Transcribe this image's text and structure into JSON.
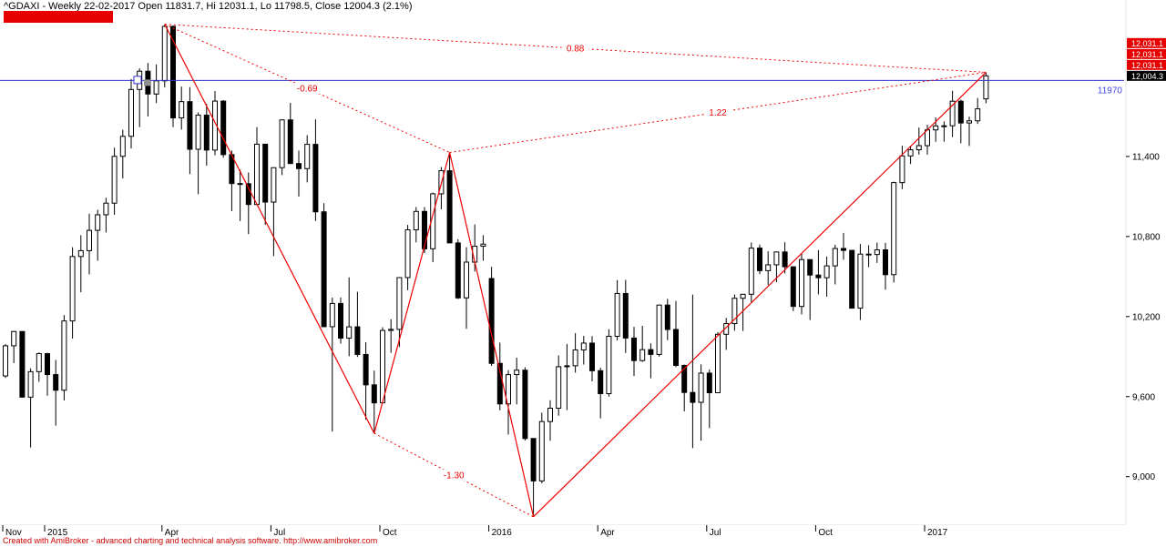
{
  "window": {
    "title": "^GDAXI - Weekly 22-02-2017 Open 11831.7, Hi 12031.1, Lo 11798.5, Close 12004.3 (2.1%)",
    "footer": "Created with AmiBroker - advanced charting and technical analysis software. http://www.amibroker.com"
  },
  "colors": {
    "pattern_red": "#ee0000",
    "hline_blue": "#3333cc",
    "banner_red": "#e60000",
    "up_candle": "#ffffff",
    "down_candle": "#000000"
  },
  "chart_data": {
    "type": "candlestick",
    "symbol": "^GDAXI",
    "timeframe": "Weekly",
    "as_of": "22-02-2017",
    "last_bar": {
      "open": 11831.7,
      "high": 12031.1,
      "low": 11798.5,
      "close": 12004.3,
      "change_pct": "2.1%"
    },
    "ylim": [
      8650,
      12450
    ],
    "y_ticks": [
      {
        "label": "11,400",
        "price": 11400
      },
      {
        "label": "10,800",
        "price": 10800
      },
      {
        "label": "10,200",
        "price": 10200
      },
      {
        "label": "9,600",
        "price": 9600
      },
      {
        "label": "9,000",
        "price": 9000
      }
    ],
    "x_ticks": [
      {
        "label": "Nov",
        "index": 0
      },
      {
        "label": "2015",
        "index": 5
      },
      {
        "label": "Apr",
        "index": 19
      },
      {
        "label": "Jul",
        "index": 32
      },
      {
        "label": "Oct",
        "index": 45
      },
      {
        "label": "2016",
        "index": 58
      },
      {
        "label": "Apr",
        "index": 71
      },
      {
        "label": "Jul",
        "index": 84
      },
      {
        "label": "Oct",
        "index": 97
      },
      {
        "label": "2017",
        "index": 110
      }
    ],
    "horizontal_line": {
      "price": 11970,
      "label": "11970",
      "color": "#3333cc",
      "label_color": "#4444ee"
    },
    "pattern": {
      "color": "#ee0000",
      "points": {
        "X": {
          "index": 19,
          "price": 12391
        },
        "A": {
          "index": 44,
          "price": 9325
        },
        "B": {
          "index": 53,
          "price": 11430
        },
        "C": {
          "index": 63,
          "price": 8699
        },
        "D": {
          "index": 117,
          "price": 12031.1
        }
      },
      "solid_lines": [
        [
          "X",
          "A"
        ],
        [
          "A",
          "B"
        ],
        [
          "B",
          "C"
        ],
        [
          "C",
          "D"
        ]
      ],
      "dotted_lines": [
        {
          "from": "X",
          "to": "B",
          "label": "-0.69"
        },
        {
          "from": "A",
          "to": "C",
          "label": "-1.30"
        },
        {
          "from": "X",
          "to": "D",
          "label": "0.88"
        },
        {
          "from": "B",
          "to": "D",
          "label": "1.22"
        }
      ]
    },
    "axis_price_boxes": [
      {
        "text": "12,031.1",
        "bg": "#e60000",
        "fg": "#ffffff"
      },
      {
        "text": "12,031.1",
        "bg": "#e60000",
        "fg": "#ffffff"
      },
      {
        "text": "12,031.1",
        "bg": "#e60000",
        "fg": "#ffffff"
      },
      {
        "text": "12,004.3",
        "bg": "#000000",
        "fg": "#ffffff"
      }
    ],
    "ohlc": [
      [
        9755,
        9993,
        9740,
        9981
      ],
      [
        9981,
        10093,
        9851,
        10088
      ],
      [
        10088,
        10089,
        9594,
        9596
      ],
      [
        9596,
        9812,
        9219,
        9787
      ],
      [
        9787,
        9931,
        9711,
        9922
      ],
      [
        9922,
        9928,
        9607,
        9765
      ],
      [
        9765,
        9875,
        9382,
        9648
      ],
      [
        9648,
        10211,
        9571,
        10167
      ],
      [
        10167,
        10720,
        10035,
        10650
      ],
      [
        10650,
        10810,
        10382,
        10694
      ],
      [
        10694,
        10970,
        10516,
        10846
      ],
      [
        10846,
        11000,
        10618,
        10963
      ],
      [
        10963,
        11090,
        10830,
        11050
      ],
      [
        11050,
        11466,
        10963,
        11401
      ],
      [
        11401,
        11600,
        11235,
        11551
      ],
      [
        11551,
        11980,
        11460,
        11902
      ],
      [
        11902,
        12060,
        11620,
        12039
      ],
      [
        12039,
        12101,
        11700,
        11868
      ],
      [
        11868,
        12090,
        11800,
        11967
      ],
      [
        11967,
        12391,
        11917,
        12375
      ],
      [
        12375,
        12380,
        11620,
        11689
      ],
      [
        11689,
        11924,
        11601,
        11811
      ],
      [
        11811,
        11920,
        11268,
        11454
      ],
      [
        11454,
        11730,
        11118,
        11710
      ],
      [
        11710,
        11795,
        11331,
        11448
      ],
      [
        11448,
        11890,
        11410,
        11815
      ],
      [
        11815,
        11822,
        11391,
        11414
      ],
      [
        11414,
        11445,
        10990,
        11197
      ],
      [
        11197,
        11302,
        10916,
        11196
      ],
      [
        11196,
        11280,
        10818,
        11040
      ],
      [
        11040,
        11620,
        11035,
        11492
      ],
      [
        11492,
        11493,
        10887,
        11058
      ],
      [
        11058,
        11318,
        10653,
        11316
      ],
      [
        11316,
        11677,
        11260,
        11674
      ],
      [
        11674,
        11802,
        11343,
        11347
      ],
      [
        11347,
        11444,
        11100,
        11309
      ],
      [
        11309,
        11560,
        11206,
        11491
      ],
      [
        11491,
        11678,
        10916,
        10985
      ],
      [
        10985,
        11050,
        10123,
        10124
      ],
      [
        10124,
        10342,
        9338,
        10298
      ],
      [
        10298,
        10343,
        9997,
        10038
      ],
      [
        10038,
        10494,
        9902,
        10123
      ],
      [
        10123,
        10385,
        9897,
        9916
      ],
      [
        9916,
        10008,
        9427,
        9688
      ],
      [
        9688,
        9795,
        9325,
        9553
      ],
      [
        9553,
        10120,
        9550,
        10096
      ],
      [
        10096,
        10180,
        9928,
        10104
      ],
      [
        10104,
        10492,
        9972,
        10492
      ],
      [
        10492,
        10887,
        10398,
        10850
      ],
      [
        10850,
        11021,
        10756,
        10988
      ],
      [
        10988,
        11021,
        10675,
        10708
      ],
      [
        10708,
        11130,
        10608,
        11120
      ],
      [
        11120,
        11321,
        11004,
        11293
      ],
      [
        11293,
        11430,
        10789,
        10752
      ],
      [
        10752,
        10780,
        10331,
        10340
      ],
      [
        10340,
        10720,
        10108,
        10608
      ],
      [
        10608,
        10890,
        10537,
        10727
      ],
      [
        10727,
        10810,
        10618,
        10743
      ],
      [
        10485,
        10573,
        9830,
        9849
      ],
      [
        9849,
        10005,
        9497,
        9545
      ],
      [
        9545,
        9798,
        9315,
        9765
      ],
      [
        9765,
        9892,
        9541,
        9798
      ],
      [
        9798,
        9820,
        9271,
        9286
      ],
      [
        9286,
        9287,
        8699,
        8968
      ],
      [
        8968,
        9480,
        8950,
        9413
      ],
      [
        9413,
        9573,
        9268,
        9513
      ],
      [
        9513,
        9908,
        9457,
        9824
      ],
      [
        9824,
        9995,
        9499,
        9831
      ],
      [
        9831,
        10075,
        9780,
        9950
      ],
      [
        9950,
        10055,
        9840,
        10001
      ],
      [
        10001,
        10054,
        9714,
        9794
      ],
      [
        9794,
        9817,
        9437,
        9622
      ],
      [
        9622,
        10105,
        9600,
        10052
      ],
      [
        10052,
        10474,
        10021,
        10373
      ],
      [
        10373,
        10475,
        9927,
        10039
      ],
      [
        10039,
        10123,
        9754,
        9870
      ],
      [
        9870,
        10130,
        9860,
        9952
      ],
      [
        9952,
        9999,
        9737,
        9916
      ],
      [
        9916,
        10290,
        9900,
        10286
      ],
      [
        10286,
        10333,
        10023,
        10103
      ],
      [
        10103,
        10316,
        9821,
        9834
      ],
      [
        9834,
        9840,
        9489,
        9631
      ],
      [
        9631,
        10365,
        9214,
        9557
      ],
      [
        9557,
        9841,
        9269,
        9776
      ],
      [
        9776,
        9804,
        9364,
        9629
      ],
      [
        9629,
        10083,
        9626,
        10067
      ],
      [
        10067,
        10190,
        9950,
        10147
      ],
      [
        10147,
        10366,
        10094,
        10337
      ],
      [
        10337,
        10370,
        10092,
        10367
      ],
      [
        10367,
        10755,
        10308,
        10713
      ],
      [
        10713,
        10739,
        10518,
        10544
      ],
      [
        10544,
        10690,
        10436,
        10588
      ],
      [
        10588,
        10683,
        10457,
        10684
      ],
      [
        10684,
        10757,
        10523,
        10573
      ],
      [
        10573,
        10576,
        10241,
        10276
      ],
      [
        10276,
        10676,
        10216,
        10627
      ],
      [
        10627,
        10628,
        10174,
        10511
      ],
      [
        10511,
        10698,
        10366,
        10491
      ],
      [
        10491,
        10650,
        10349,
        10580
      ],
      [
        10580,
        10738,
        10441,
        10710
      ],
      [
        10710,
        10827,
        10626,
        10696
      ],
      [
        10696,
        10700,
        10259,
        10263
      ],
      [
        10263,
        10744,
        10174,
        10668
      ],
      [
        10668,
        10735,
        10570,
        10665
      ],
      [
        10665,
        10754,
        10602,
        10700
      ],
      [
        10700,
        10752,
        10402,
        10514
      ],
      [
        10514,
        11211,
        10455,
        11204
      ],
      [
        11204,
        11480,
        11155,
        11404
      ],
      [
        11404,
        11481,
        11343,
        11450
      ],
      [
        11450,
        11617,
        11414,
        11481
      ],
      [
        11481,
        11637,
        11414,
        11599
      ],
      [
        11599,
        11692,
        11510,
        11629
      ],
      [
        11629,
        11663,
        11511,
        11630
      ],
      [
        11630,
        11893,
        11545,
        11814
      ],
      [
        11814,
        11826,
        11499,
        11651
      ],
      [
        11651,
        11699,
        11479,
        11667
      ],
      [
        11667,
        11838,
        11644,
        11757
      ],
      [
        11831.7,
        12031.1,
        11798.5,
        12004.3
      ]
    ]
  }
}
